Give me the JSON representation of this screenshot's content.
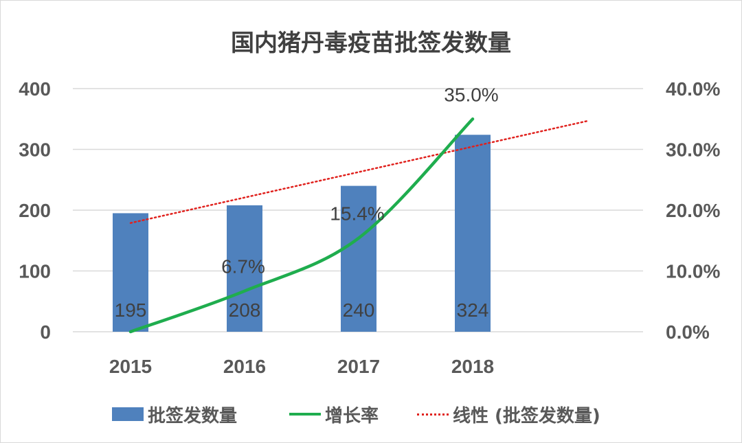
{
  "chart_data": {
    "type": "bar",
    "title": "国内猪丹毒疫苗批签发数量",
    "categories": [
      "2015",
      "2016",
      "2017",
      "2018"
    ],
    "series": [
      {
        "name": "批签发数量",
        "type": "bar",
        "axis": "left",
        "values": [
          195,
          208,
          240,
          324
        ],
        "labels": [
          "195",
          "208",
          "240",
          "324"
        ],
        "color": "#4f81bd"
      },
      {
        "name": "增长率",
        "type": "line",
        "axis": "right",
        "values": [
          0.0,
          6.7,
          15.4,
          35.0
        ],
        "labels": [
          "",
          "6.7%",
          "15.4%",
          "35.0%"
        ],
        "color": "#1fad4e"
      },
      {
        "name": "线性 (批签发数量)",
        "type": "trendline",
        "axis": "left",
        "color": "#e0211d"
      }
    ],
    "y_left": {
      "min": 0,
      "max": 400,
      "ticks": [
        "0",
        "100",
        "200",
        "300",
        "400"
      ]
    },
    "y_right": {
      "min": 0,
      "max": 40,
      "ticks": [
        "0.0%",
        "10.0%",
        "20.0%",
        "30.0%",
        "40.0%"
      ]
    },
    "grid": true,
    "legend": "bottom"
  }
}
